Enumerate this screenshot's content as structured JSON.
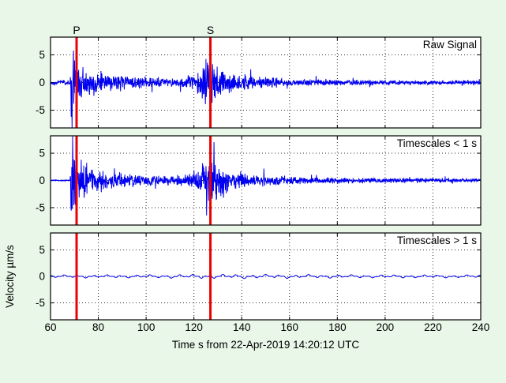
{
  "figure": {
    "background_color": "#e9f7e9",
    "plot_background_color": "#ffffff",
    "axis_color": "#000000",
    "grid_color": "#2a2a2a",
    "trace_color": "#0000f0",
    "marker_color": "#ee0000"
  },
  "chart_data": {
    "type": "line",
    "title": "",
    "xlabel": "Time s from 22-Apr-2019 14:20:12 UTC",
    "ylabel": "Velocity µm/s",
    "xlim": [
      60,
      240
    ],
    "xticks": [
      60,
      80,
      100,
      120,
      140,
      160,
      180,
      200,
      220,
      240
    ],
    "yticks": [
      5,
      0,
      -5
    ],
    "ylim": [
      -8.2,
      8.2
    ],
    "grid": "dotted",
    "legend": "none",
    "markers": [
      {
        "label": "P",
        "time": 70.9
      },
      {
        "label": "S",
        "time": 126.9
      }
    ],
    "panels": [
      {
        "label": "Raw Signal",
        "style": "noise",
        "seed": 101,
        "pre_event_wobble": 0.18,
        "envelope": [
          [
            60,
            0.35
          ],
          [
            68.2,
            0.35
          ],
          [
            68.5,
            10
          ],
          [
            69.6,
            12
          ],
          [
            70.6,
            6.5
          ],
          [
            72,
            4.6
          ],
          [
            74,
            3.4
          ],
          [
            77,
            2.6
          ],
          [
            80,
            2.2
          ],
          [
            85,
            1.8
          ],
          [
            90,
            1.5
          ],
          [
            95,
            1.3
          ],
          [
            100,
            1.15
          ],
          [
            105,
            1.0
          ],
          [
            110,
            1.0
          ],
          [
            115,
            1.1
          ],
          [
            118,
            1.4
          ],
          [
            121,
            2.2
          ],
          [
            123,
            3.2
          ],
          [
            125,
            4.6
          ],
          [
            127,
            5.4
          ],
          [
            128,
            5.0
          ],
          [
            130,
            4.2
          ],
          [
            132,
            3.4
          ],
          [
            134,
            2.8
          ],
          [
            137,
            2.3
          ],
          [
            140,
            1.9
          ],
          [
            145,
            1.5
          ],
          [
            150,
            1.2
          ],
          [
            155,
            1.0
          ],
          [
            160,
            0.8
          ],
          [
            170,
            0.65
          ],
          [
            180,
            0.55
          ],
          [
            200,
            0.5
          ],
          [
            220,
            0.45
          ],
          [
            240,
            0.45
          ]
        ]
      },
      {
        "label": "Timescales < 1 s",
        "style": "noise",
        "seed": 202,
        "pre_event_wobble": 0,
        "envelope": [
          [
            60,
            0.12
          ],
          [
            68.2,
            0.12
          ],
          [
            68.5,
            10
          ],
          [
            69.6,
            12
          ],
          [
            70.6,
            6.5
          ],
          [
            72,
            4.6
          ],
          [
            74,
            3.4
          ],
          [
            77,
            2.7
          ],
          [
            80,
            2.3
          ],
          [
            85,
            1.9
          ],
          [
            90,
            1.6
          ],
          [
            95,
            1.35
          ],
          [
            100,
            1.15
          ],
          [
            105,
            1.0
          ],
          [
            110,
            1.0
          ],
          [
            115,
            1.15
          ],
          [
            118,
            1.5
          ],
          [
            121,
            2.4
          ],
          [
            123,
            3.6
          ],
          [
            125,
            5.2
          ],
          [
            126,
            6.0
          ],
          [
            127,
            5.7
          ],
          [
            128,
            5.2
          ],
          [
            130,
            4.3
          ],
          [
            132,
            3.5
          ],
          [
            134,
            2.9
          ],
          [
            137,
            2.4
          ],
          [
            140,
            2.0
          ],
          [
            145,
            1.6
          ],
          [
            150,
            1.25
          ],
          [
            155,
            1.05
          ],
          [
            160,
            0.9
          ],
          [
            170,
            0.7
          ],
          [
            180,
            0.6
          ],
          [
            200,
            0.5
          ],
          [
            220,
            0.42
          ],
          [
            240,
            0.38
          ]
        ]
      },
      {
        "label": "Timescales > 1 s",
        "style": "smooth",
        "seed": 303,
        "pre_event_wobble": 0,
        "envelope": [
          [
            60,
            0.25
          ],
          [
            100,
            0.25
          ],
          [
            110,
            0.3
          ],
          [
            120,
            0.35
          ],
          [
            140,
            0.35
          ],
          [
            160,
            0.3
          ],
          [
            200,
            0.25
          ],
          [
            240,
            0.25
          ]
        ]
      }
    ]
  }
}
